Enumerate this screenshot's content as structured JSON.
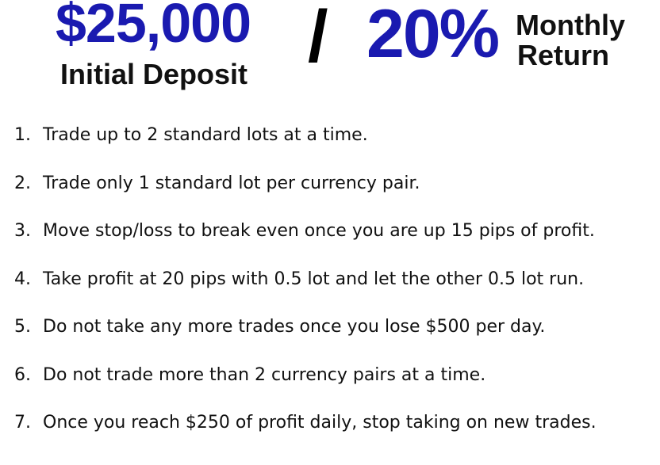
{
  "header": {
    "deposit_amount": "$25,000",
    "deposit_label": "Initial Deposit",
    "separator": "/",
    "return_percent": "20%",
    "return_label_line1": "Monthly",
    "return_label_line2": "Return",
    "accent_color": "#1a1ab0"
  },
  "rules": [
    {
      "num": "1.",
      "text": "Trade up to 2 standard lots at a time."
    },
    {
      "num": "2.",
      "text": "Trade only 1 standard lot per currency pair."
    },
    {
      "num": "3.",
      "text": "Move stop/loss to break even once you are up 15 pips of profit."
    },
    {
      "num": "4.",
      "text": "Take profit at 20 pips with 0.5 lot and let the other 0.5 lot run."
    },
    {
      "num": "5.",
      "text": "Do not take any more trades once you lose $500 per day."
    },
    {
      "num": "6.",
      "text": "Do not trade more than 2 currency pairs at a time."
    },
    {
      "num": "7.",
      "text": "Once you reach $250 of profit daily, stop taking on new trades."
    }
  ]
}
